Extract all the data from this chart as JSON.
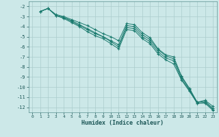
{
  "xlabel": "Humidex (Indice chaleur)",
  "background_color": "#cce8e8",
  "grid_color": "#aacccc",
  "line_color": "#1a7a6e",
  "xlim": [
    -0.5,
    23.5
  ],
  "ylim": [
    -12.5,
    -1.5
  ],
  "yticks": [
    -2,
    -3,
    -4,
    -5,
    -6,
    -7,
    -8,
    -9,
    -10,
    -11,
    -12
  ],
  "xticks": [
    0,
    1,
    2,
    3,
    4,
    5,
    6,
    7,
    8,
    9,
    10,
    11,
    12,
    13,
    14,
    15,
    16,
    17,
    18,
    19,
    20,
    21,
    22,
    23
  ],
  "series": [
    [
      null,
      -2.5,
      -2.2,
      -2.8,
      -3.0,
      -3.3,
      -3.6,
      -3.9,
      -4.3,
      -4.7,
      -5.0,
      -5.4,
      -3.7,
      -3.8,
      -4.6,
      -5.1,
      -6.2,
      -6.8,
      -7.0,
      -8.9,
      -10.1,
      -11.5,
      -11.3,
      -11.9
    ],
    [
      null,
      -2.5,
      -2.2,
      -2.9,
      -3.1,
      -3.4,
      -3.8,
      -4.2,
      -4.6,
      -5.0,
      -5.4,
      -5.8,
      -3.9,
      -4.0,
      -4.8,
      -5.3,
      -6.3,
      -6.9,
      -7.2,
      -9.0,
      -10.2,
      -11.5,
      -11.4,
      -12.1
    ],
    [
      null,
      -2.5,
      -2.2,
      -2.9,
      -3.1,
      -3.5,
      -3.9,
      -4.3,
      -4.7,
      -5.0,
      -5.5,
      -6.0,
      -4.1,
      -4.2,
      -5.0,
      -5.5,
      -6.5,
      -7.1,
      -7.4,
      -9.2,
      -10.3,
      -11.6,
      -11.5,
      -12.2
    ],
    [
      null,
      -2.5,
      -2.2,
      -2.9,
      -3.2,
      -3.6,
      -4.0,
      -4.5,
      -4.9,
      -5.2,
      -5.7,
      -6.2,
      -4.3,
      -4.4,
      -5.2,
      -5.7,
      -6.7,
      -7.3,
      -7.7,
      -9.3,
      -10.4,
      -11.6,
      -11.6,
      -12.3
    ]
  ]
}
